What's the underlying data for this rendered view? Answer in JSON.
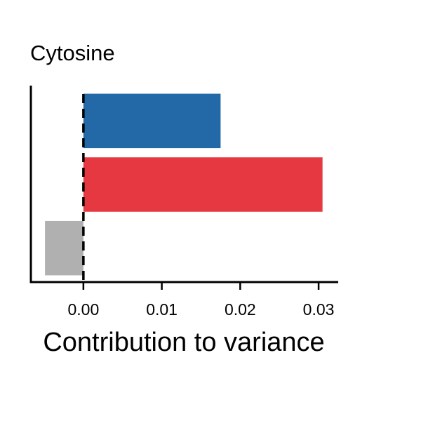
{
  "chart_data": {
    "type": "bar",
    "orientation": "horizontal",
    "title": "Cytosine",
    "xlabel": "Contribution to variance",
    "ylabel": "",
    "xlim": [
      -0.0067,
      0.0325
    ],
    "xticks": [
      0.0,
      0.01,
      0.02,
      0.03
    ],
    "xtick_labels": [
      "0.00",
      "0.01",
      "0.02",
      "0.03"
    ],
    "values": [
      0.0175,
      0.0305,
      -0.0049
    ],
    "colors": [
      "#2369a8",
      "#e63841",
      "#b0b0b0"
    ],
    "reference_line": {
      "x": 0.0,
      "style": "dashed",
      "color": "#000000"
    },
    "grid": false,
    "legend": "none"
  }
}
